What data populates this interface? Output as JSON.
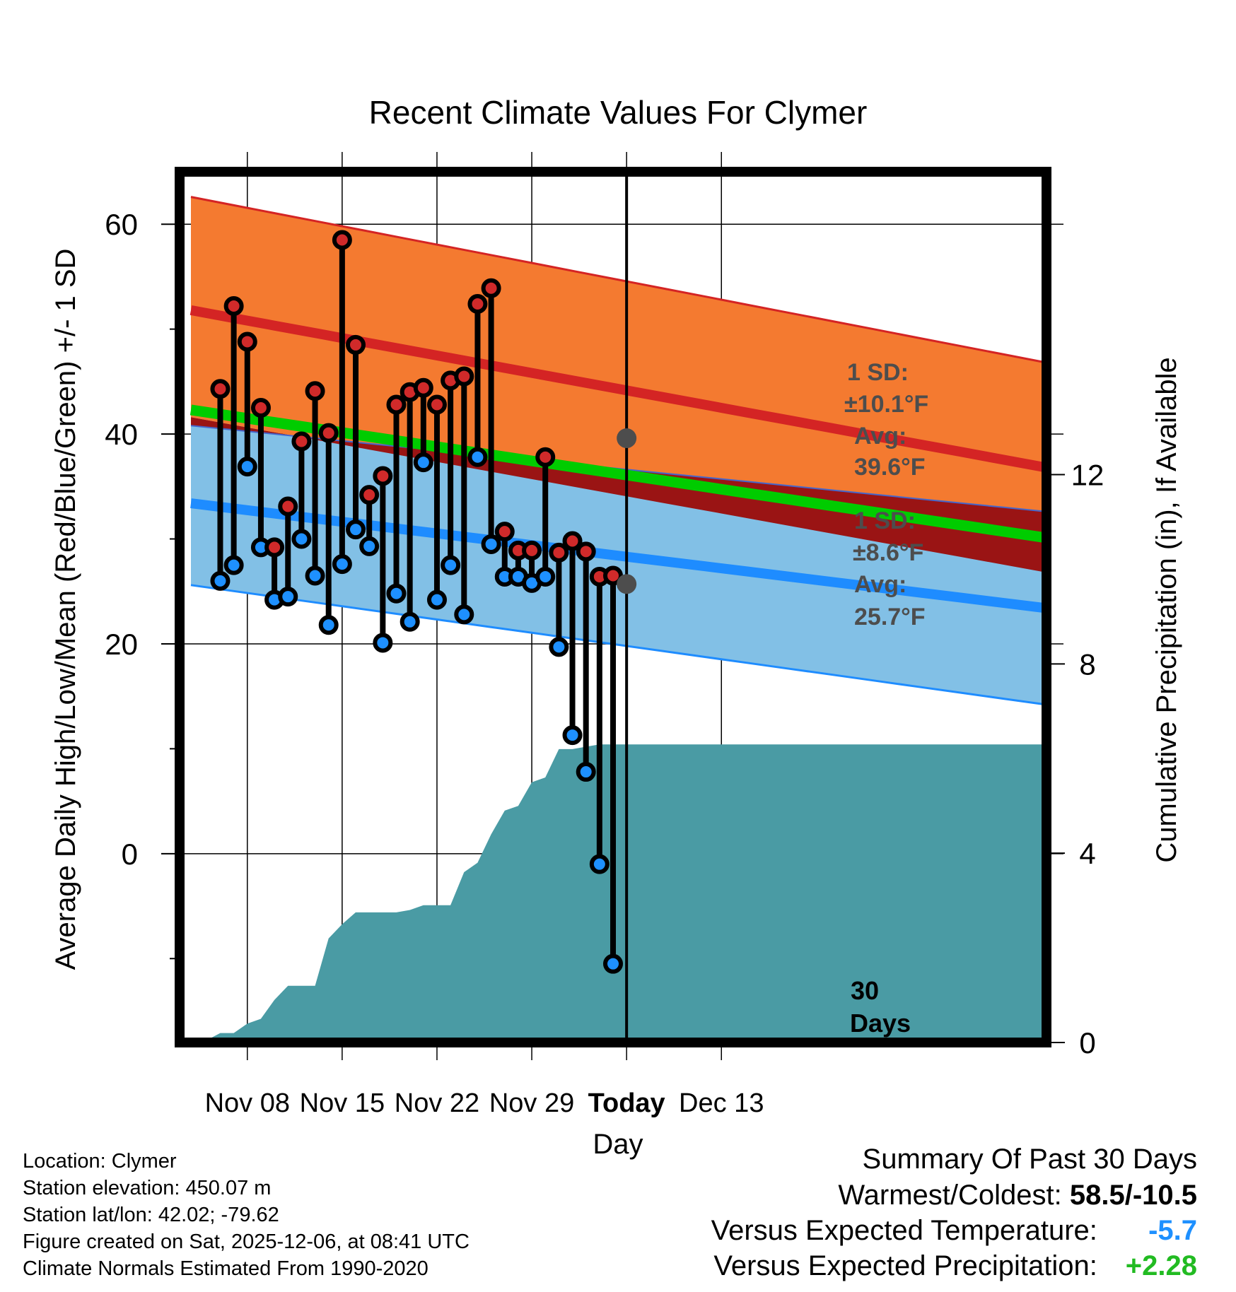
{
  "chart_data": {
    "type": "line",
    "title": "Recent Climate Values For Clymer",
    "xlabel": "Day",
    "ylabel": "Average Daily High/Low/Mean (Red/Blue/Green) +/- 1 SD",
    "y2label": "Cumulative Precipitation (in), If Available",
    "xlim_days": [
      -1,
      63
    ],
    "ylim": [
      -18,
      65
    ],
    "y2lim": [
      0,
      18.4
    ],
    "x_ticks": [
      {
        "day": 4,
        "label": "Nov 08"
      },
      {
        "day": 11,
        "label": "Nov 15"
      },
      {
        "day": 18,
        "label": "Nov 22"
      },
      {
        "day": 25,
        "label": "Nov 29"
      },
      {
        "day": 32,
        "label": "Today"
      },
      {
        "day": 39,
        "label": "Dec 13"
      }
    ],
    "y_ticks": [
      0,
      20,
      40,
      60
    ],
    "y_minor_ticks": [
      -10,
      10,
      30,
      50
    ],
    "y2_ticks": [
      0,
      4,
      8,
      12
    ],
    "today_day": 32,
    "window_label": [
      "30",
      "Days"
    ],
    "normals": {
      "high_avg": [
        51.8,
        36.8
      ],
      "high_sd_upper": [
        62.6,
        46.8
      ],
      "high_sd_lower": [
        41.6,
        26.8
      ],
      "low_avg": [
        33.4,
        23.4
      ],
      "low_sd_upper": [
        40.8,
        32.6
      ],
      "low_sd_lower": [
        25.6,
        14.2
      ],
      "mean_avg": [
        42.3,
        30.1
      ]
    },
    "today_high": {
      "sd_label": "1 SD:",
      "sd_value": "±10.1°F",
      "avg_label": "Avg:",
      "avg_value": "39.6°F",
      "avg": 39.6
    },
    "today_low": {
      "sd_label": "1 SD:",
      "sd_value": "±8.6°F",
      "avg_label": "Avg:",
      "avg_value": "25.7°F",
      "avg": 25.7
    },
    "days": [
      2,
      3,
      4,
      5,
      6,
      7,
      8,
      9,
      10,
      11,
      12,
      13,
      14,
      15,
      16,
      17,
      18,
      19,
      20,
      21,
      22,
      23,
      24,
      25,
      26,
      27,
      28,
      29,
      30,
      31
    ],
    "highs": [
      44.3,
      52.2,
      48.8,
      42.5,
      29.2,
      33.1,
      39.3,
      44.1,
      40.1,
      58.5,
      48.5,
      34.2,
      36.0,
      42.8,
      44.0,
      44.4,
      42.8,
      45.1,
      45.5,
      52.4,
      53.9,
      30.7,
      28.9,
      28.9,
      37.8,
      28.7,
      29.8,
      28.8,
      26.4,
      26.5
    ],
    "lows": [
      26.0,
      27.5,
      36.9,
      29.2,
      24.2,
      24.5,
      30.0,
      26.5,
      21.8,
      27.6,
      30.9,
      29.3,
      20.1,
      24.8,
      22.1,
      37.3,
      24.2,
      27.5,
      22.8,
      37.8,
      29.5,
      26.4,
      26.4,
      25.8,
      26.4,
      19.7,
      11.3,
      7.8,
      -1.0,
      -10.5
    ],
    "precip_cumulative": {
      "days": [
        -1,
        0,
        1,
        2,
        3,
        4,
        5,
        6,
        7,
        8,
        9,
        10,
        11,
        12,
        13,
        14,
        15,
        16,
        17,
        18,
        19,
        20,
        21,
        22,
        23,
        24,
        25,
        26,
        27,
        28,
        29,
        30,
        31,
        32,
        40
      ],
      "values": [
        0,
        0,
        0.05,
        0.2,
        0.2,
        0.4,
        0.5,
        0.9,
        1.2,
        1.2,
        1.2,
        2.2,
        2.5,
        2.75,
        2.75,
        2.75,
        2.75,
        2.8,
        2.9,
        2.9,
        2.9,
        3.6,
        3.8,
        4.4,
        4.9,
        5.0,
        5.5,
        5.6,
        6.2,
        6.2,
        6.25,
        6.3,
        6.3,
        6.3,
        6.3
      ]
    }
  },
  "info": {
    "location": "Location: Clymer",
    "elevation": "Station elevation: 450.07 m",
    "latlon": "Station lat/lon: 42.02; -79.62",
    "created": "Figure created on Sat, 2025-12-06, at 08:41 UTC",
    "normals": "Climate Normals Estimated From 1990-2020"
  },
  "summary": {
    "title": "Summary Of Past 30 Days",
    "warmest_label": "Warmest/Coldest:",
    "warmest_value": "58.5/-10.5",
    "temp_label": "Versus Expected Temperature:",
    "temp_value": "-5.7",
    "precip_label": "Versus Expected Precipitation:",
    "precip_value": "+2.28",
    "temp_color": "#1e90ff",
    "precip_color": "#22bb22"
  },
  "colors": {
    "high_band": "#f47a30",
    "high_line": "#d42424",
    "low_band": "#82c0e6",
    "low_line": "#1e8cff",
    "overlap": "#9a1414",
    "mean_line": "#00cc00",
    "precip": "#4a9ba4",
    "high_marker": "#d02a2a",
    "low_marker": "#1e90ff",
    "annotation": "#4d4d4d"
  }
}
